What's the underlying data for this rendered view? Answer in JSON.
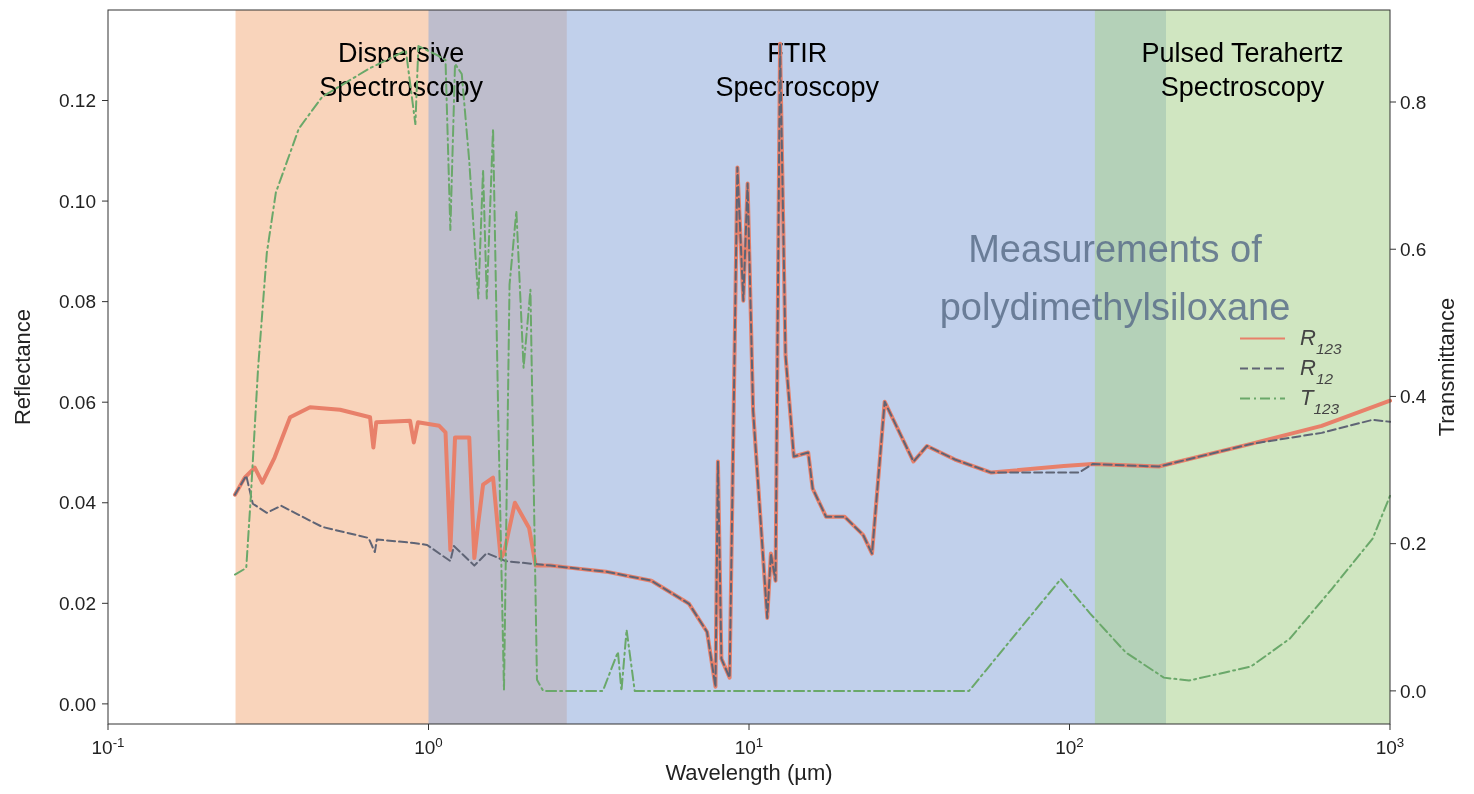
{
  "chart_data": {
    "type": "line",
    "xlabel": "Wavelength (µm)",
    "ylabel": "Reflectance",
    "y2label": "Transmittance",
    "log": "x",
    "xlim": [
      0.1,
      1000
    ],
    "xticks": [
      {
        "value": 0.1,
        "label": "10$^{-1}$"
      },
      {
        "value": 1,
        "label": "10$^{0}$"
      },
      {
        "value": 10,
        "label": "10$^{1}$"
      },
      {
        "value": 100,
        "label": "10$^{2}$"
      },
      {
        "value": 1000,
        "label": "10$^{3}$"
      }
    ],
    "ylim": [
      -0.004,
      0.138
    ],
    "yticks": [
      {
        "value": 0,
        "label": "0.00"
      },
      {
        "value": 0.02,
        "label": "0.02"
      },
      {
        "value": 0.04,
        "label": "0.04"
      },
      {
        "value": 0.06,
        "label": "0.06"
      },
      {
        "value": 0.08,
        "label": "0.08"
      },
      {
        "value": 0.1,
        "label": "0.10"
      },
      {
        "value": 0.12,
        "label": "0.12"
      }
    ],
    "y2lim": [
      -0.045,
      0.925
    ],
    "y2ticks": [
      {
        "value": 0,
        "label": "0.0"
      },
      0.2,
      0.4,
      0.6,
      0.8
    ],
    "grid": false,
    "legend": "right",
    "bands": [
      {
        "axis": "x",
        "from": 0.25,
        "to": 2.7,
        "label": "Dispersive Spectroscopy",
        "color": "#f4b183"
      },
      {
        "axis": "x",
        "from": 1,
        "to": 200,
        "label": "FTIR Spectroscopy",
        "color": "#8eaadb"
      },
      {
        "axis": "x",
        "from": 120,
        "to": 1000,
        "label": "Pulsed Terahertz Spectroscopy",
        "color": "#a9d18e"
      }
    ],
    "annotations": [
      "Measurements of polydimethylsiloxane"
    ],
    "series": [
      {
        "name": "R$_{123}$",
        "color": "#e8806a",
        "line_style": "solid",
        "x": [
          0.249,
          0.267,
          0.287,
          0.303,
          0.331,
          0.37,
          0.427,
          0.53,
          0.657,
          0.673,
          0.687,
          0.876,
          0.9,
          0.927,
          1.08,
          1.13,
          1.17,
          1.21,
          1.34,
          1.39,
          1.43,
          1.48,
          1.59,
          1.68,
          1.72,
          1.86,
          2.06,
          2.16,
          2.4,
          2.74,
          3.58,
          4.96,
          6.5,
          7.4,
          7.86,
          8.0,
          8.2,
          8.7,
          9.2,
          9.6,
          9.9,
          10.3,
          11.4,
          11.7,
          12.1,
          12.5,
          13.0,
          13.8,
          15.3,
          15.8,
          17.4,
          19.9,
          22.7,
          24.2,
          26.5,
          32.6,
          35.9,
          43.9,
          57,
          96,
          118,
          190,
          368,
          612,
          1000
        ],
        "values": [
          0.0416,
          0.045,
          0.047,
          0.044,
          0.049,
          0.057,
          0.059,
          0.0585,
          0.057,
          0.051,
          0.056,
          0.0563,
          0.052,
          0.056,
          0.0553,
          0.054,
          0.0306,
          0.053,
          0.053,
          0.029,
          0.036,
          0.0436,
          0.045,
          0.029,
          0.03,
          0.04,
          0.035,
          0.0275,
          0.0275,
          0.0271,
          0.0263,
          0.0245,
          0.0199,
          0.0143,
          0.0034,
          0.0482,
          0.009,
          0.0052,
          0.1067,
          0.0802,
          0.1035,
          0.0583,
          0.0171,
          0.0299,
          0.0245,
          0.1313,
          0.0693,
          0.0492,
          0.05,
          0.0428,
          0.0372,
          0.0372,
          0.0336,
          0.0299,
          0.0601,
          0.0482,
          0.0513,
          0.0486,
          0.046,
          0.0473,
          0.0477,
          0.0472,
          0.0517,
          0.0553,
          0.0603
        ]
      },
      {
        "name": "R$_{12}$",
        "color": "#5f6475",
        "line_style": "dashed",
        "x": [
          0.249,
          0.27,
          0.283,
          0.313,
          0.347,
          0.466,
          0.65,
          0.68,
          0.69,
          0.9,
          0.99,
          1.17,
          1.2,
          1.39,
          1.52,
          1.74,
          2.4,
          2.74,
          3.58,
          4.96,
          6.5,
          7.4,
          7.86,
          8.0,
          8.2,
          8.7,
          9.2,
          9.6,
          9.9,
          10.3,
          11.4,
          11.7,
          12.1,
          12.5,
          13.0,
          13.8,
          15.3,
          15.8,
          17.4,
          19.9,
          22.7,
          24.2,
          26.5,
          32.6,
          35.9,
          43.9,
          57,
          107,
          118,
          190,
          368,
          612,
          883,
          1000
        ],
        "values": [
          0.0416,
          0.0454,
          0.0398,
          0.038,
          0.0394,
          0.0352,
          0.033,
          0.0302,
          0.0327,
          0.032,
          0.0316,
          0.0284,
          0.0314,
          0.0275,
          0.03,
          0.0284,
          0.0275,
          0.0271,
          0.0263,
          0.0245,
          0.0199,
          0.0143,
          0.0034,
          0.0482,
          0.009,
          0.0052,
          0.1067,
          0.0802,
          0.1035,
          0.0583,
          0.0171,
          0.0299,
          0.0245,
          0.1313,
          0.0693,
          0.0492,
          0.05,
          0.0428,
          0.0372,
          0.0372,
          0.0336,
          0.0299,
          0.0601,
          0.0482,
          0.0513,
          0.0486,
          0.046,
          0.046,
          0.0477,
          0.0472,
          0.0517,
          0.0539,
          0.0565,
          0.0561
        ]
      },
      {
        "name": "T$_{123}$",
        "color": "#6aa86a",
        "line_style": "dashdot",
        "axis": "y2",
        "x": [
          0.249,
          0.27,
          0.279,
          0.294,
          0.313,
          0.334,
          0.394,
          0.466,
          0.65,
          0.74,
          0.85,
          0.91,
          0.93,
          1.06,
          1.13,
          1.17,
          1.21,
          1.27,
          1.34,
          1.43,
          1.48,
          1.52,
          1.59,
          1.65,
          1.72,
          1.79,
          1.88,
          1.98,
          2.08,
          2.18,
          2.28,
          3.5,
          3.9,
          4.0,
          4.15,
          4.4,
          48.6,
          94,
          116,
          150,
          197,
          236,
          368,
          487,
          660,
          883,
          1000
        ],
        "values": [
          0.158,
          0.167,
          0.264,
          0.439,
          0.595,
          0.677,
          0.764,
          0.807,
          0.845,
          0.857,
          0.87,
          0.77,
          0.876,
          0.864,
          0.857,
          0.626,
          0.852,
          0.838,
          0.72,
          0.533,
          0.708,
          0.533,
          0.764,
          0.376,
          0.001,
          0.552,
          0.652,
          0.439,
          0.545,
          0.015,
          0,
          0,
          0.053,
          0,
          0.083,
          0,
          0,
          0.152,
          0.105,
          0.052,
          0.018,
          0.014,
          0.033,
          0.071,
          0.139,
          0.207,
          0.265
        ]
      }
    ]
  }
}
